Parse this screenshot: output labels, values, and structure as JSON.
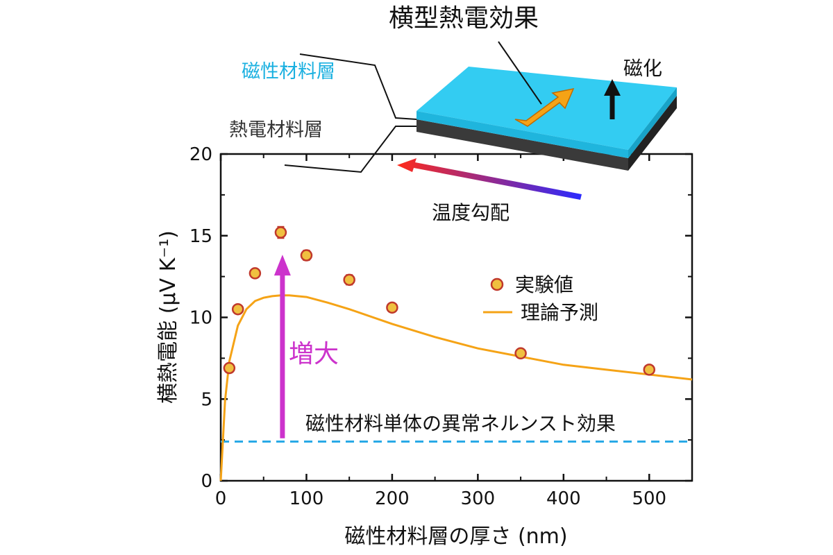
{
  "chart_data": {
    "type": "scatter",
    "xlabel": "磁性材料層の厚さ (nm)",
    "ylabel": "横熱電能 (μV K⁻¹)",
    "xlim": [
      0,
      550
    ],
    "ylim": [
      0,
      20
    ],
    "x_ticks": [
      "0",
      "100",
      "200",
      "300",
      "400",
      "500"
    ],
    "y_ticks": [
      "0",
      "5",
      "10",
      "15",
      "20"
    ],
    "grid": false,
    "legend_position": "right",
    "series": [
      {
        "name": "実験値",
        "kind": "points_with_error_bars",
        "color": "#d4a017",
        "edge_color": "#c0392b",
        "points": [
          {
            "x": 10,
            "y": 6.9,
            "err": 0.2
          },
          {
            "x": 20,
            "y": 10.5,
            "err": 0.25
          },
          {
            "x": 40,
            "y": 12.7,
            "err": 0.25
          },
          {
            "x": 70,
            "y": 15.2,
            "err": 0.35
          },
          {
            "x": 100,
            "y": 13.8,
            "err": 0.3
          },
          {
            "x": 150,
            "y": 12.3,
            "err": 0.3
          },
          {
            "x": 200,
            "y": 10.6,
            "err": 0.2
          },
          {
            "x": 350,
            "y": 7.8,
            "err": 0.25
          },
          {
            "x": 500,
            "y": 6.8,
            "err": 0.2
          }
        ]
      },
      {
        "name": "理論予測",
        "kind": "line",
        "color": "#f5a316",
        "points": [
          [
            0,
            0
          ],
          [
            5,
            4.9
          ],
          [
            10,
            7.3
          ],
          [
            20,
            9.5
          ],
          [
            30,
            10.5
          ],
          [
            40,
            11.0
          ],
          [
            50,
            11.2
          ],
          [
            60,
            11.3
          ],
          [
            70,
            11.35
          ],
          [
            80,
            11.35
          ],
          [
            100,
            11.25
          ],
          [
            125,
            10.9
          ],
          [
            150,
            10.5
          ],
          [
            200,
            9.6
          ],
          [
            250,
            8.8
          ],
          [
            300,
            8.1
          ],
          [
            350,
            7.6
          ],
          [
            400,
            7.1
          ],
          [
            450,
            6.8
          ],
          [
            500,
            6.5
          ],
          [
            550,
            6.2
          ]
        ]
      },
      {
        "name": "磁性材料単体の異常ネルンスト効果",
        "kind": "hline",
        "color": "#29a9e6",
        "y": 2.4
      }
    ],
    "annotations": {
      "increase_arrow": {
        "label": "増大",
        "color": "#cc33cc",
        "x": 72,
        "y_from": 2.6,
        "y_to": 13.5
      },
      "baseline_label": "磁性材料単体の異常ネルンスト効果"
    }
  },
  "schematic": {
    "title": "横型熱電効果",
    "magnetic_layer_label": "磁性材料層",
    "thermoelectric_layer_label": "熱電材料層",
    "magnetization_label": "磁化",
    "temperature_gradient_label": "温度勾配",
    "magnetic_layer_color": "#33ccf2",
    "thermoelectric_layer_color": "#3a3a3a",
    "effect_arrow_color": "#f5a316",
    "gradient_colors": [
      "#ff2a1a",
      "#2a2aff"
    ]
  }
}
